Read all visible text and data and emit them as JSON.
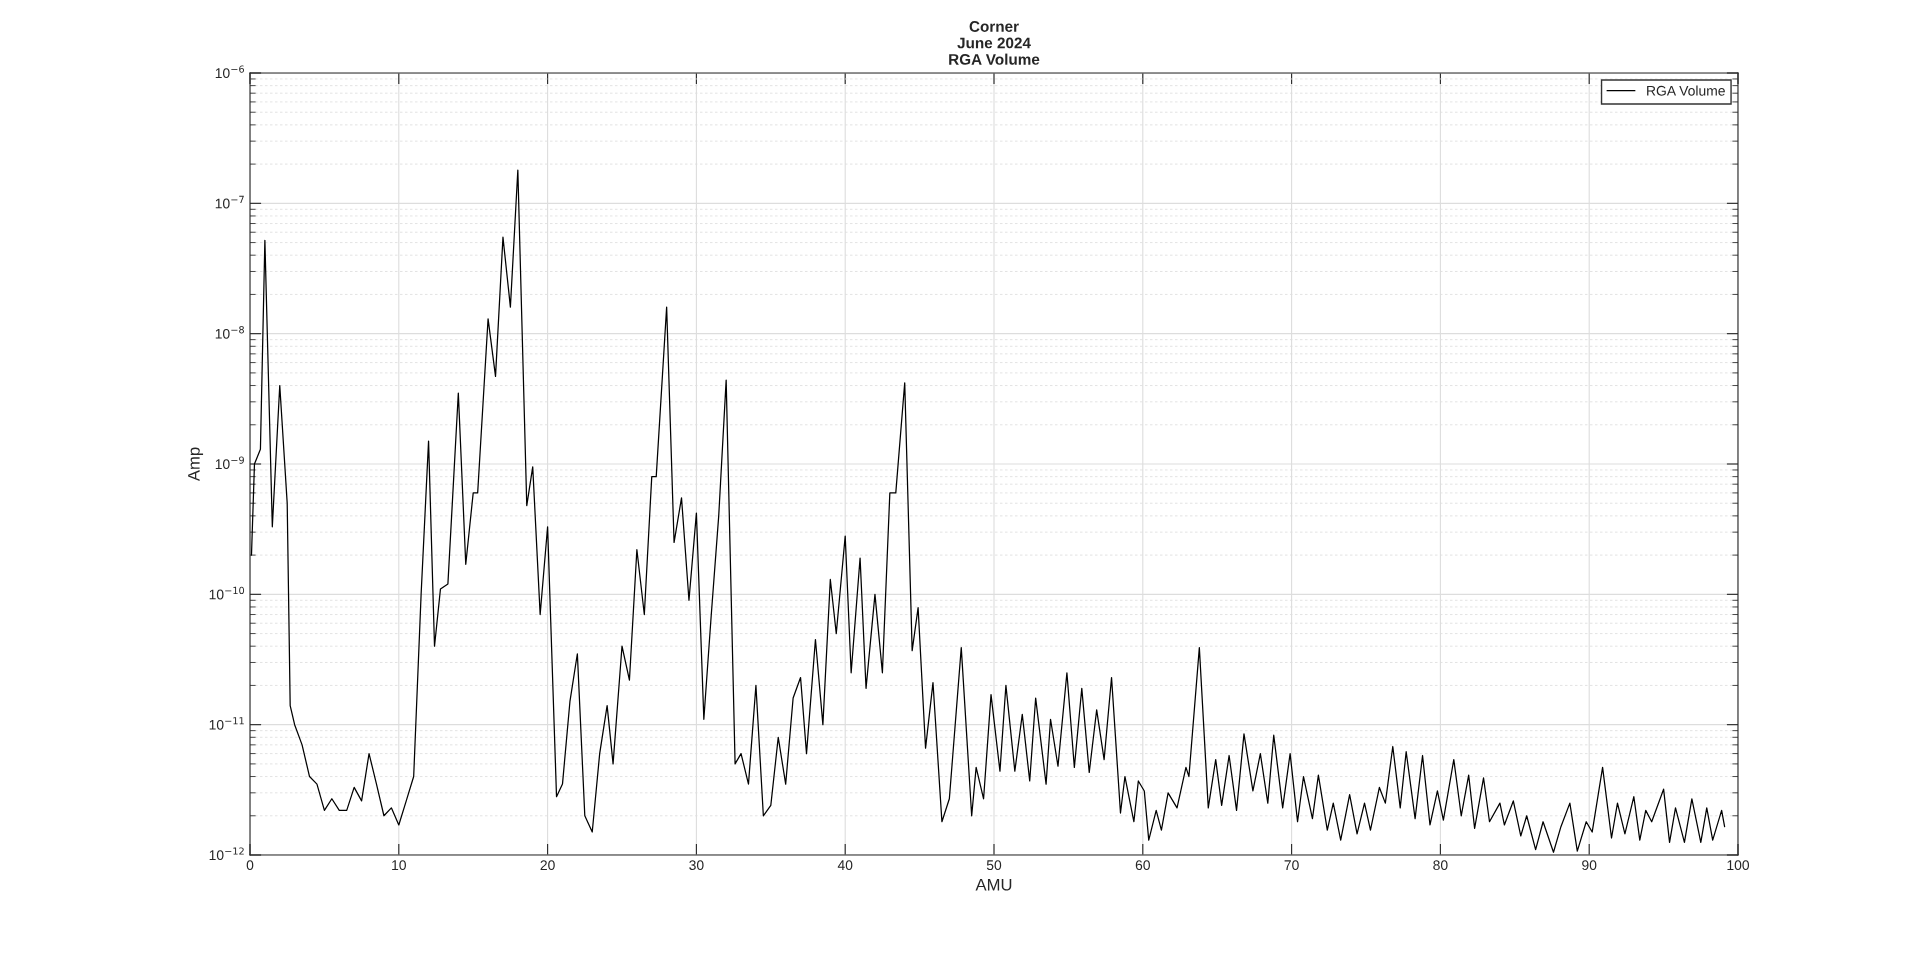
{
  "chart_data": {
    "type": "line",
    "title": "Corner\nJune 2024\nRGA Volume",
    "xlabel": "AMU",
    "ylabel": "Amp",
    "series": [
      {
        "name": "RGA Volume",
        "color": "#000000",
        "x": [
          0.1,
          0.3,
          0.7,
          1.0,
          1.5,
          2.0,
          2.5,
          2.7,
          3.0,
          3.5,
          4.0,
          4.5,
          5.0,
          5.5,
          6.0,
          6.5,
          7.0,
          7.5,
          8.0,
          8.5,
          9.0,
          9.5,
          10.0,
          10.5,
          11.0,
          11.5,
          12.0,
          12.4,
          12.8,
          13.3,
          14.0,
          14.5,
          15.0,
          15.3,
          16.0,
          16.5,
          17.0,
          17.5,
          18.0,
          18.6,
          19.0,
          19.5,
          20.0,
          20.6,
          21.0,
          21.5,
          22.0,
          22.5,
          23.0,
          23.5,
          24.0,
          24.4,
          25.0,
          25.5,
          26.0,
          26.5,
          27.0,
          27.3,
          28.0,
          28.5,
          29.0,
          29.5,
          30.0,
          30.5,
          31.0,
          31.5,
          32.0,
          32.6,
          33.0,
          33.5,
          34.0,
          34.5,
          35.0,
          35.5,
          36.0,
          36.5,
          37.0,
          37.4,
          38.0,
          38.5,
          39.0,
          39.4,
          40.0,
          40.4,
          41.0,
          41.4,
          42.0,
          42.5,
          43.0,
          43.4,
          44.0,
          44.5,
          44.9,
          45.4,
          45.9,
          46.5,
          47.0,
          47.8,
          48.5,
          48.8,
          49.3,
          49.8,
          50.4,
          50.8,
          51.4,
          51.9,
          52.4,
          52.8,
          53.5,
          53.8,
          54.3,
          54.9,
          55.4,
          55.9,
          56.4,
          56.9,
          57.4,
          57.9,
          58.5,
          58.8,
          59.4,
          59.7,
          60.1,
          60.4,
          60.9,
          61.25,
          61.7,
          62.3,
          62.9,
          63.1,
          63.8,
          64.4,
          64.9,
          65.3,
          65.8,
          66.3,
          66.8,
          67.4,
          67.9,
          68.4,
          68.8,
          69.4,
          69.9,
          70.4,
          70.8,
          71.4,
          71.8,
          72.4,
          72.8,
          73.3,
          73.9,
          74.4,
          74.9,
          75.3,
          75.9,
          76.3,
          76.8,
          77.3,
          77.7,
          78.3,
          78.8,
          79.3,
          79.8,
          80.2,
          80.9,
          81.4,
          81.9,
          82.3,
          82.9,
          83.3,
          84.0,
          84.3,
          84.9,
          85.4,
          85.8,
          86.4,
          86.9,
          87.6,
          88.1,
          88.7,
          89.2,
          89.8,
          90.2,
          90.9,
          91.5,
          91.9,
          92.4,
          93.0,
          93.4,
          93.8,
          94.2,
          95.0,
          95.4,
          95.8,
          96.4,
          96.9,
          97.5,
          97.9,
          98.3,
          98.9,
          99.1
        ],
        "values": [
          2e-10,
          1e-09,
          1.3e-09,
          5.2e-08,
          3.3e-10,
          4e-09,
          5e-10,
          1.4e-11,
          1e-11,
          7e-12,
          4e-12,
          3.5e-12,
          2.2e-12,
          2.7e-12,
          2.2e-12,
          2.2e-12,
          3.3e-12,
          2.6e-12,
          6e-12,
          3.5e-12,
          2e-12,
          2.3e-12,
          1.7e-12,
          2.6e-12,
          4e-12,
          1e-10,
          1.5e-09,
          4e-11,
          1.1e-10,
          1.2e-10,
          3.5e-09,
          1.7e-10,
          6e-10,
          6e-10,
          1.3e-08,
          4.7e-09,
          5.5e-08,
          1.6e-08,
          1.8e-07,
          4.8e-10,
          9.5e-10,
          7e-11,
          3.3e-10,
          2.8e-12,
          3.5e-12,
          1.5e-11,
          3.5e-11,
          2e-12,
          1.5e-12,
          6e-12,
          1.4e-11,
          5e-12,
          4e-11,
          2.2e-11,
          2.2e-10,
          7e-11,
          8e-10,
          8e-10,
          1.6e-08,
          2.5e-10,
          5.5e-10,
          9e-11,
          4.2e-10,
          1.1e-11,
          7e-11,
          4e-10,
          4.4e-09,
          5e-12,
          6e-12,
          3.5e-12,
          2e-11,
          2e-12,
          2.4e-12,
          8e-12,
          3.5e-12,
          1.6e-11,
          2.3e-11,
          6e-12,
          4.5e-11,
          1e-11,
          1.3e-10,
          5e-11,
          2.8e-10,
          2.5e-11,
          1.9e-10,
          1.9e-11,
          1e-10,
          2.5e-11,
          6e-10,
          6e-10,
          4.2e-09,
          3.7e-11,
          7.9e-11,
          6.6e-12,
          2.1e-11,
          1.8e-12,
          2.7e-12,
          3.9e-11,
          2e-12,
          4.7e-12,
          2.7e-12,
          1.7e-11,
          4.4e-12,
          2e-11,
          4.4e-12,
          1.2e-11,
          3.7e-12,
          1.6e-11,
          3.5e-12,
          1.1e-11,
          4.8e-12,
          2.5e-11,
          4.7e-12,
          1.9e-11,
          4.3e-12,
          1.3e-11,
          5.4e-12,
          2.3e-11,
          2.1e-12,
          4e-12,
          1.8e-12,
          3.7e-12,
          3.1e-12,
          1.3e-12,
          2.2e-12,
          1.55e-12,
          3e-12,
          2.3e-12,
          4.7e-12,
          4e-12,
          3.9e-11,
          2.3e-12,
          5.4e-12,
          2.4e-12,
          5.8e-12,
          2.2e-12,
          8.5e-12,
          3.1e-12,
          6e-12,
          2.5e-12,
          8.3e-12,
          2.3e-12,
          6e-12,
          1.8e-12,
          4e-12,
          1.9e-12,
          4.1e-12,
          1.55e-12,
          2.5e-12,
          1.3e-12,
          2.9e-12,
          1.45e-12,
          2.5e-12,
          1.55e-12,
          3.3e-12,
          2.5e-12,
          6.8e-12,
          2.3e-12,
          6.2e-12,
          1.9e-12,
          5.8e-12,
          1.7e-12,
          3.1e-12,
          1.85e-12,
          5.4e-12,
          2e-12,
          4.1e-12,
          1.6e-12,
          3.9e-12,
          1.8e-12,
          2.5e-12,
          1.7e-12,
          2.6e-12,
          1.4e-12,
          2e-12,
          1.1e-12,
          1.8e-12,
          1.05e-12,
          1.65e-12,
          2.5e-12,
          1.07e-12,
          1.8e-12,
          1.5e-12,
          4.7e-12,
          1.35e-12,
          2.5e-12,
          1.45e-12,
          2.8e-12,
          1.3e-12,
          2.2e-12,
          1.8e-12,
          3.2e-12,
          1.25e-12,
          2.3e-12,
          1.25e-12,
          2.7e-12,
          1.25e-12,
          2.3e-12,
          1.3e-12,
          2.2e-12,
          1.65e-12
        ]
      }
    ],
    "log": "y",
    "xlim": [
      0,
      100
    ],
    "ylim": [
      1e-12,
      1e-06
    ],
    "xticks": [
      0,
      10,
      20,
      30,
      40,
      50,
      60,
      70,
      80,
      90,
      100
    ],
    "yticks": [
      {
        "value": 1e-12,
        "label": "10$^{−12}$"
      },
      {
        "value": 1e-11,
        "label": "10$^{−11}$"
      },
      {
        "value": 1e-10,
        "label": "10$^{−10}$"
      },
      {
        "value": 1e-09,
        "label": "10$^{−9}$"
      },
      {
        "value": 1e-08,
        "label": "10$^{−8}$"
      },
      {
        "value": 1e-07,
        "label": "10$^{−7}$"
      },
      {
        "value": 1e-06,
        "label": "10$^{−6}$"
      }
    ],
    "grid": true,
    "legend": "top right",
    "marker": "none",
    "line_style": "solid"
  }
}
